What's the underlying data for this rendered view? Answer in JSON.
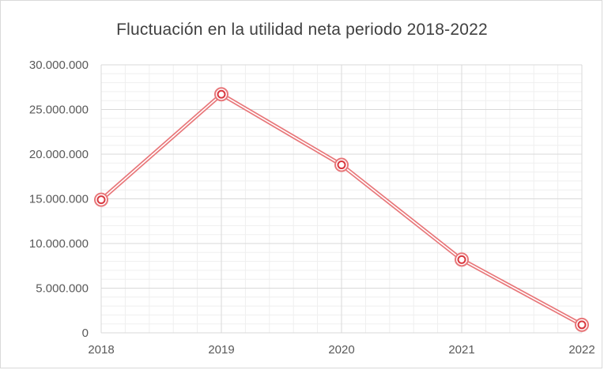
{
  "chart_data": {
    "type": "line",
    "title": "Fluctuación  en la utilidad neta periodo 2018-2022",
    "xlabel": "",
    "ylabel": "",
    "categories": [
      "2018",
      "2019",
      "2020",
      "2021",
      "2022"
    ],
    "series": [
      {
        "values": [
          14900000,
          26700000,
          18800000,
          8200000,
          900000
        ]
      }
    ],
    "ylim": [
      0,
      30000000
    ],
    "y_ticks": [
      0,
      5000000,
      10000000,
      15000000,
      20000000,
      25000000,
      30000000
    ],
    "y_tick_labels": [
      "0",
      "5.000.000",
      "10.000.000",
      "15.000.000",
      "20.000.000",
      "25.000.000",
      "30.000.000"
    ],
    "grid": true,
    "legend": "none",
    "colors": {
      "line": "#e8777a",
      "marker": "#d9383f",
      "grid_major": "#d9d9d9",
      "grid_minor": "#efefef",
      "text": "#595959",
      "title": "#404040"
    }
  }
}
